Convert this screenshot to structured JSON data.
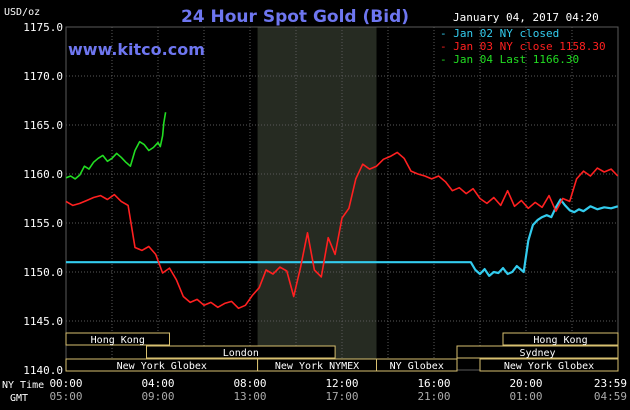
{
  "chart_data": {
    "type": "line",
    "title": "24 Hour Spot Gold (Bid)",
    "watermark": "www.kitco.com",
    "unit_label": "USD/oz",
    "timestamp": "January 04, 2017 04:20",
    "ylim": [
      1140,
      1175
    ],
    "y_ticks": [
      "1140.0",
      "1145.0",
      "1150.0",
      "1155.0",
      "1160.0",
      "1165.0",
      "1170.0",
      "1175.0"
    ],
    "x_axis_labels": {
      "row1": "NY Time",
      "row2": "GMT"
    },
    "x_ticks_ny": [
      "00:00",
      "04:00",
      "08:00",
      "12:00",
      "16:00",
      "20:00",
      "23:59"
    ],
    "x_ticks_gmt": [
      "05:00",
      "09:00",
      "13:00",
      "17:00",
      "21:00",
      "01:00",
      "04:59"
    ],
    "grid": true,
    "legend_position": "top-right",
    "shaded_session": {
      "from_hour": 8.33,
      "to_hour": 13.5
    },
    "sessions": [
      {
        "label": "Hong Kong",
        "row": 0,
        "from_hour": 0,
        "to_hour": 4.5
      },
      {
        "label": "Hong Kong",
        "row": 0,
        "from_hour": 19.0,
        "to_hour": 24.0
      },
      {
        "label": "London",
        "row": 1,
        "from_hour": 3.5,
        "to_hour": 11.7
      },
      {
        "label": "Sydney",
        "row": 1,
        "from_hour": 17.0,
        "to_hour": 24.0
      },
      {
        "label": "New York Globex",
        "row": 2,
        "from_hour": 0,
        "to_hour": 8.33
      },
      {
        "label": "New York NYMEX",
        "row": 2,
        "from_hour": 8.33,
        "to_hour": 13.5
      },
      {
        "label": "NY Globex",
        "row": 2,
        "from_hour": 13.5,
        "to_hour": 17.0
      },
      {
        "label": "New York Globex",
        "row": 2,
        "from_hour": 18.0,
        "to_hour": 24.0
      }
    ],
    "colors": {
      "background": "#000000",
      "grid": "#5a5a5a",
      "shaded": "#262b22",
      "jan02": "#33ccee",
      "jan03": "#ff2020",
      "jan04": "#22dd22",
      "title": "#6e76f0",
      "watermark": "#6e76f0",
      "text": "#ffffff",
      "session_border": "#d8c070"
    },
    "series": [
      {
        "name": "Jan 02 NY closed",
        "legend": "- Jan 02 NY closed",
        "color": "#33ccee",
        "x": [
          0,
          17.6,
          17.8,
          18.0,
          18.2,
          18.4,
          18.6,
          18.8,
          19.0,
          19.2,
          19.4,
          19.6,
          19.9,
          20.1,
          20.3,
          20.5,
          20.7,
          20.9,
          21.1,
          21.3,
          21.5,
          21.7,
          21.9,
          22.1,
          22.3,
          22.5,
          22.8,
          23.1,
          23.4,
          23.7,
          23.99
        ],
        "y": [
          1151.0,
          1151.0,
          1150.2,
          1149.8,
          1150.3,
          1149.6,
          1150.0,
          1149.9,
          1150.4,
          1149.8,
          1150.0,
          1150.6,
          1150.0,
          1153.2,
          1154.8,
          1155.3,
          1155.6,
          1155.8,
          1155.6,
          1156.6,
          1157.4,
          1156.8,
          1156.3,
          1156.1,
          1156.4,
          1156.2,
          1156.7,
          1156.4,
          1156.6,
          1156.5,
          1156.7
        ]
      },
      {
        "name": "Jan 03 NY close 1158.30",
        "legend": "- Jan 03 NY close 1158.30",
        "color": "#ff2020",
        "x": [
          0,
          0.3,
          0.6,
          0.9,
          1.2,
          1.5,
          1.8,
          2.1,
          2.4,
          2.7,
          3.0,
          3.3,
          3.6,
          3.9,
          4.2,
          4.5,
          4.8,
          5.1,
          5.4,
          5.7,
          6.0,
          6.3,
          6.6,
          6.9,
          7.2,
          7.5,
          7.8,
          8.1,
          8.4,
          8.7,
          9.0,
          9.3,
          9.6,
          9.9,
          10.2,
          10.5,
          10.8,
          11.1,
          11.4,
          11.7,
          12.0,
          12.3,
          12.6,
          12.9,
          13.2,
          13.5,
          13.8,
          14.1,
          14.4,
          14.7,
          15.0,
          15.3,
          15.6,
          15.9,
          16.2,
          16.5,
          16.8,
          17.1,
          17.4,
          17.7,
          18.0,
          18.3,
          18.6,
          18.9,
          19.2,
          19.5,
          19.8,
          20.1,
          20.4,
          20.7,
          21.0,
          21.3,
          21.6,
          21.9,
          22.2,
          22.5,
          22.8,
          23.1,
          23.4,
          23.7,
          23.99
        ],
        "y": [
          1157.2,
          1156.8,
          1157.0,
          1157.3,
          1157.6,
          1157.8,
          1157.4,
          1157.9,
          1157.2,
          1156.8,
          1152.5,
          1152.2,
          1152.6,
          1151.8,
          1149.9,
          1150.4,
          1149.2,
          1147.5,
          1146.9,
          1147.2,
          1146.6,
          1146.9,
          1146.4,
          1146.8,
          1147.0,
          1146.3,
          1146.6,
          1147.6,
          1148.4,
          1150.2,
          1149.8,
          1150.5,
          1150.1,
          1147.5,
          1150.5,
          1154.0,
          1150.2,
          1149.5,
          1153.5,
          1151.8,
          1155.5,
          1156.5,
          1159.5,
          1161.0,
          1160.5,
          1160.8,
          1161.5,
          1161.8,
          1162.2,
          1161.6,
          1160.3,
          1160.0,
          1159.8,
          1159.5,
          1159.8,
          1159.2,
          1158.3,
          1158.6,
          1158.0,
          1158.5,
          1157.5,
          1157.0,
          1157.6,
          1156.8,
          1158.3,
          1156.7,
          1157.3,
          1156.5,
          1157.1,
          1156.6,
          1157.8,
          1156.2,
          1157.5,
          1157.2,
          1159.5,
          1160.3,
          1159.8,
          1160.6,
          1160.2,
          1160.5,
          1159.8
        ]
      },
      {
        "name": "Jan 04 Last 1166.30",
        "legend": "- Jan 04 Last 1166.30",
        "color": "#22dd22",
        "x": [
          0,
          0.2,
          0.4,
          0.6,
          0.8,
          1.0,
          1.2,
          1.4,
          1.6,
          1.8,
          2.0,
          2.2,
          2.4,
          2.6,
          2.8,
          3.0,
          3.2,
          3.4,
          3.6,
          3.8,
          4.0,
          4.1,
          4.2,
          4.25,
          4.33
        ],
        "y": [
          1159.6,
          1159.8,
          1159.5,
          1159.9,
          1160.8,
          1160.5,
          1161.2,
          1161.6,
          1161.9,
          1161.3,
          1161.6,
          1162.1,
          1161.7,
          1161.2,
          1160.8,
          1162.4,
          1163.3,
          1163.0,
          1162.4,
          1162.7,
          1163.2,
          1162.8,
          1163.9,
          1165.2,
          1166.3
        ]
      }
    ]
  }
}
